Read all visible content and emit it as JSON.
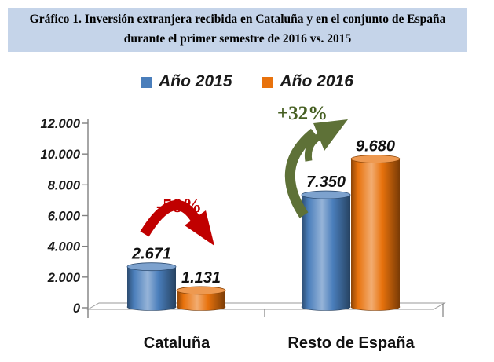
{
  "title": {
    "text": "Gráfico 1. Inversión extranjera recibida en Cataluña y en el conjunto de España durante el primer semestre de 2016 vs. 2015"
  },
  "legend": {
    "items": [
      {
        "label": "Año 2015",
        "color": "#4a7ebb"
      },
      {
        "label": "Año 2016",
        "color": "#e8720c"
      }
    ]
  },
  "chart_data": {
    "type": "bar",
    "style": "3d-cylinder",
    "title": "Inversión extranjera recibida en Cataluña y en el conjunto de España, primer semestre 2016 vs. 2015",
    "categories": [
      "Cataluña",
      "Resto de España"
    ],
    "series": [
      {
        "name": "Año 2015",
        "color": "#4a7ebb",
        "values": [
          2671,
          7350
        ],
        "data_labels": [
          "2.671",
          "7.350"
        ]
      },
      {
        "name": "Año 2016",
        "color": "#e8720c",
        "values": [
          1131,
          9680
        ],
        "data_labels": [
          "1.131",
          "9.680"
        ]
      }
    ],
    "xlabel": "",
    "ylabel": "",
    "ylim": [
      0,
      12000
    ],
    "ytick_labels": [
      "0",
      "2.000",
      "4.000",
      "6.000",
      "8.000",
      "10.000",
      "12.000"
    ],
    "grid": false,
    "legend_position": "top",
    "annotations": [
      {
        "text": "-58%",
        "target": "Cataluña",
        "direction": "down",
        "text_color": "#c00000",
        "arrow_color": "#c00000"
      },
      {
        "text": "+32%",
        "target": "Resto de España",
        "direction": "up",
        "text_color": "#465f22",
        "arrow_color": "#5e7137"
      }
    ]
  }
}
